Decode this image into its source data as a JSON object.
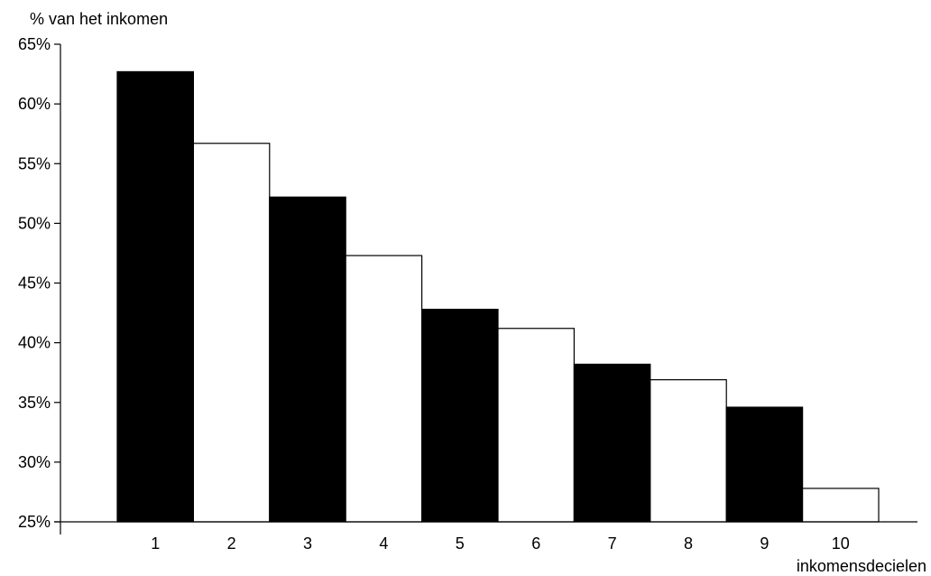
{
  "chart_data": {
    "type": "bar",
    "title": "",
    "ylabel": "% van het inkomen",
    "xlabel": "inkomensdecielen",
    "categories": [
      "1",
      "2",
      "3",
      "4",
      "5",
      "6",
      "7",
      "8",
      "9",
      "10"
    ],
    "values": [
      62.7,
      56.7,
      52.2,
      47.3,
      42.8,
      41.2,
      38.2,
      36.9,
      34.6,
      27.8
    ],
    "ylim": [
      25,
      65
    ],
    "yticks": [
      25,
      30,
      35,
      40,
      45,
      50,
      55,
      60,
      65
    ],
    "ytick_labels": [
      "25%",
      "30%",
      "35%",
      "40%",
      "45%",
      "50%",
      "55%",
      "60%",
      "65%"
    ],
    "bar_fills": [
      "#000000",
      "#ffffff",
      "#000000",
      "#ffffff",
      "#000000",
      "#ffffff",
      "#000000",
      "#ffffff",
      "#000000",
      "#ffffff"
    ],
    "bar_stroke": "#000000",
    "grid": false,
    "legend": "none"
  }
}
